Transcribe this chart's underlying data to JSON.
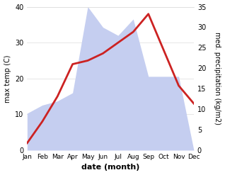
{
  "months": [
    "Jan",
    "Feb",
    "Mar",
    "Apr",
    "May",
    "Jun",
    "Jul",
    "Aug",
    "Sep",
    "Oct",
    "Nov",
    "Dec"
  ],
  "temperature": [
    2,
    8,
    15,
    24,
    25,
    27,
    30,
    33,
    38,
    28,
    18,
    13
  ],
  "precipitation": [
    9,
    11,
    12,
    14,
    35,
    30,
    28,
    32,
    18,
    18,
    18,
    0
  ],
  "temp_color": "#cc2222",
  "precip_fill_color": "#c5cef0",
  "left_ylabel": "max temp (C)",
  "right_ylabel": "med. precipitation (kg/m2)",
  "xlabel": "date (month)",
  "left_ylim": [
    0,
    40
  ],
  "right_ylim": [
    0,
    35
  ],
  "left_yticks": [
    0,
    10,
    20,
    30,
    40
  ],
  "right_yticks": [
    0,
    5,
    10,
    15,
    20,
    25,
    30,
    35
  ],
  "bg_color": "#ffffff",
  "line_width": 2.0,
  "grid_color": "#dddddd"
}
